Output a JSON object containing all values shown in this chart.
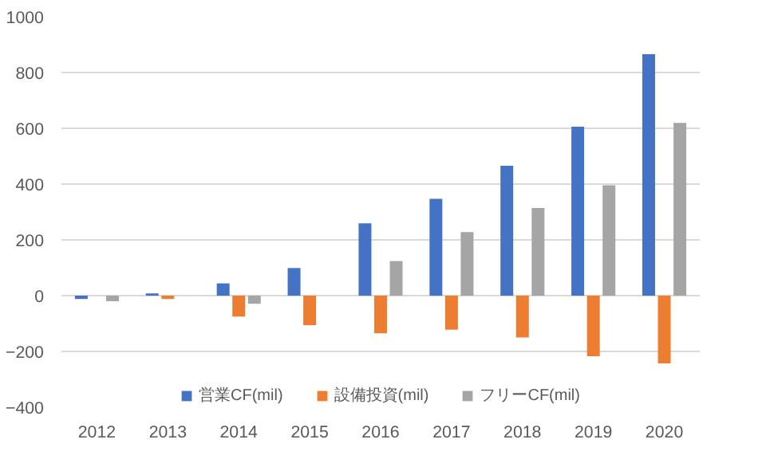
{
  "chart_data": {
    "type": "bar",
    "categories": [
      "2012",
      "2013",
      "2014",
      "2015",
      "2016",
      "2017",
      "2018",
      "2019",
      "2020"
    ],
    "series": [
      {
        "name": "営業CF(mil)",
        "color": "#4472c4",
        "values": [
          -12,
          8,
          44,
          99,
          259,
          347,
          466,
          606,
          866
        ]
      },
      {
        "name": "設備投資(mil)",
        "color": "#ed7d31",
        "values": [
          null,
          -12,
          -75,
          -106,
          -135,
          -122,
          -150,
          -217,
          -243
        ]
      },
      {
        "name": "フリーCF(mil)",
        "color": "#a5a5a5",
        "values": [
          -20,
          null,
          -29,
          null,
          124,
          228,
          314,
          396,
          619
        ]
      }
    ],
    "ylim": [
      -400,
      1000
    ],
    "yticks": [
      -400,
      -200,
      0,
      200,
      400,
      600,
      800,
      1000
    ],
    "grid": "y",
    "legend": "bottom"
  }
}
